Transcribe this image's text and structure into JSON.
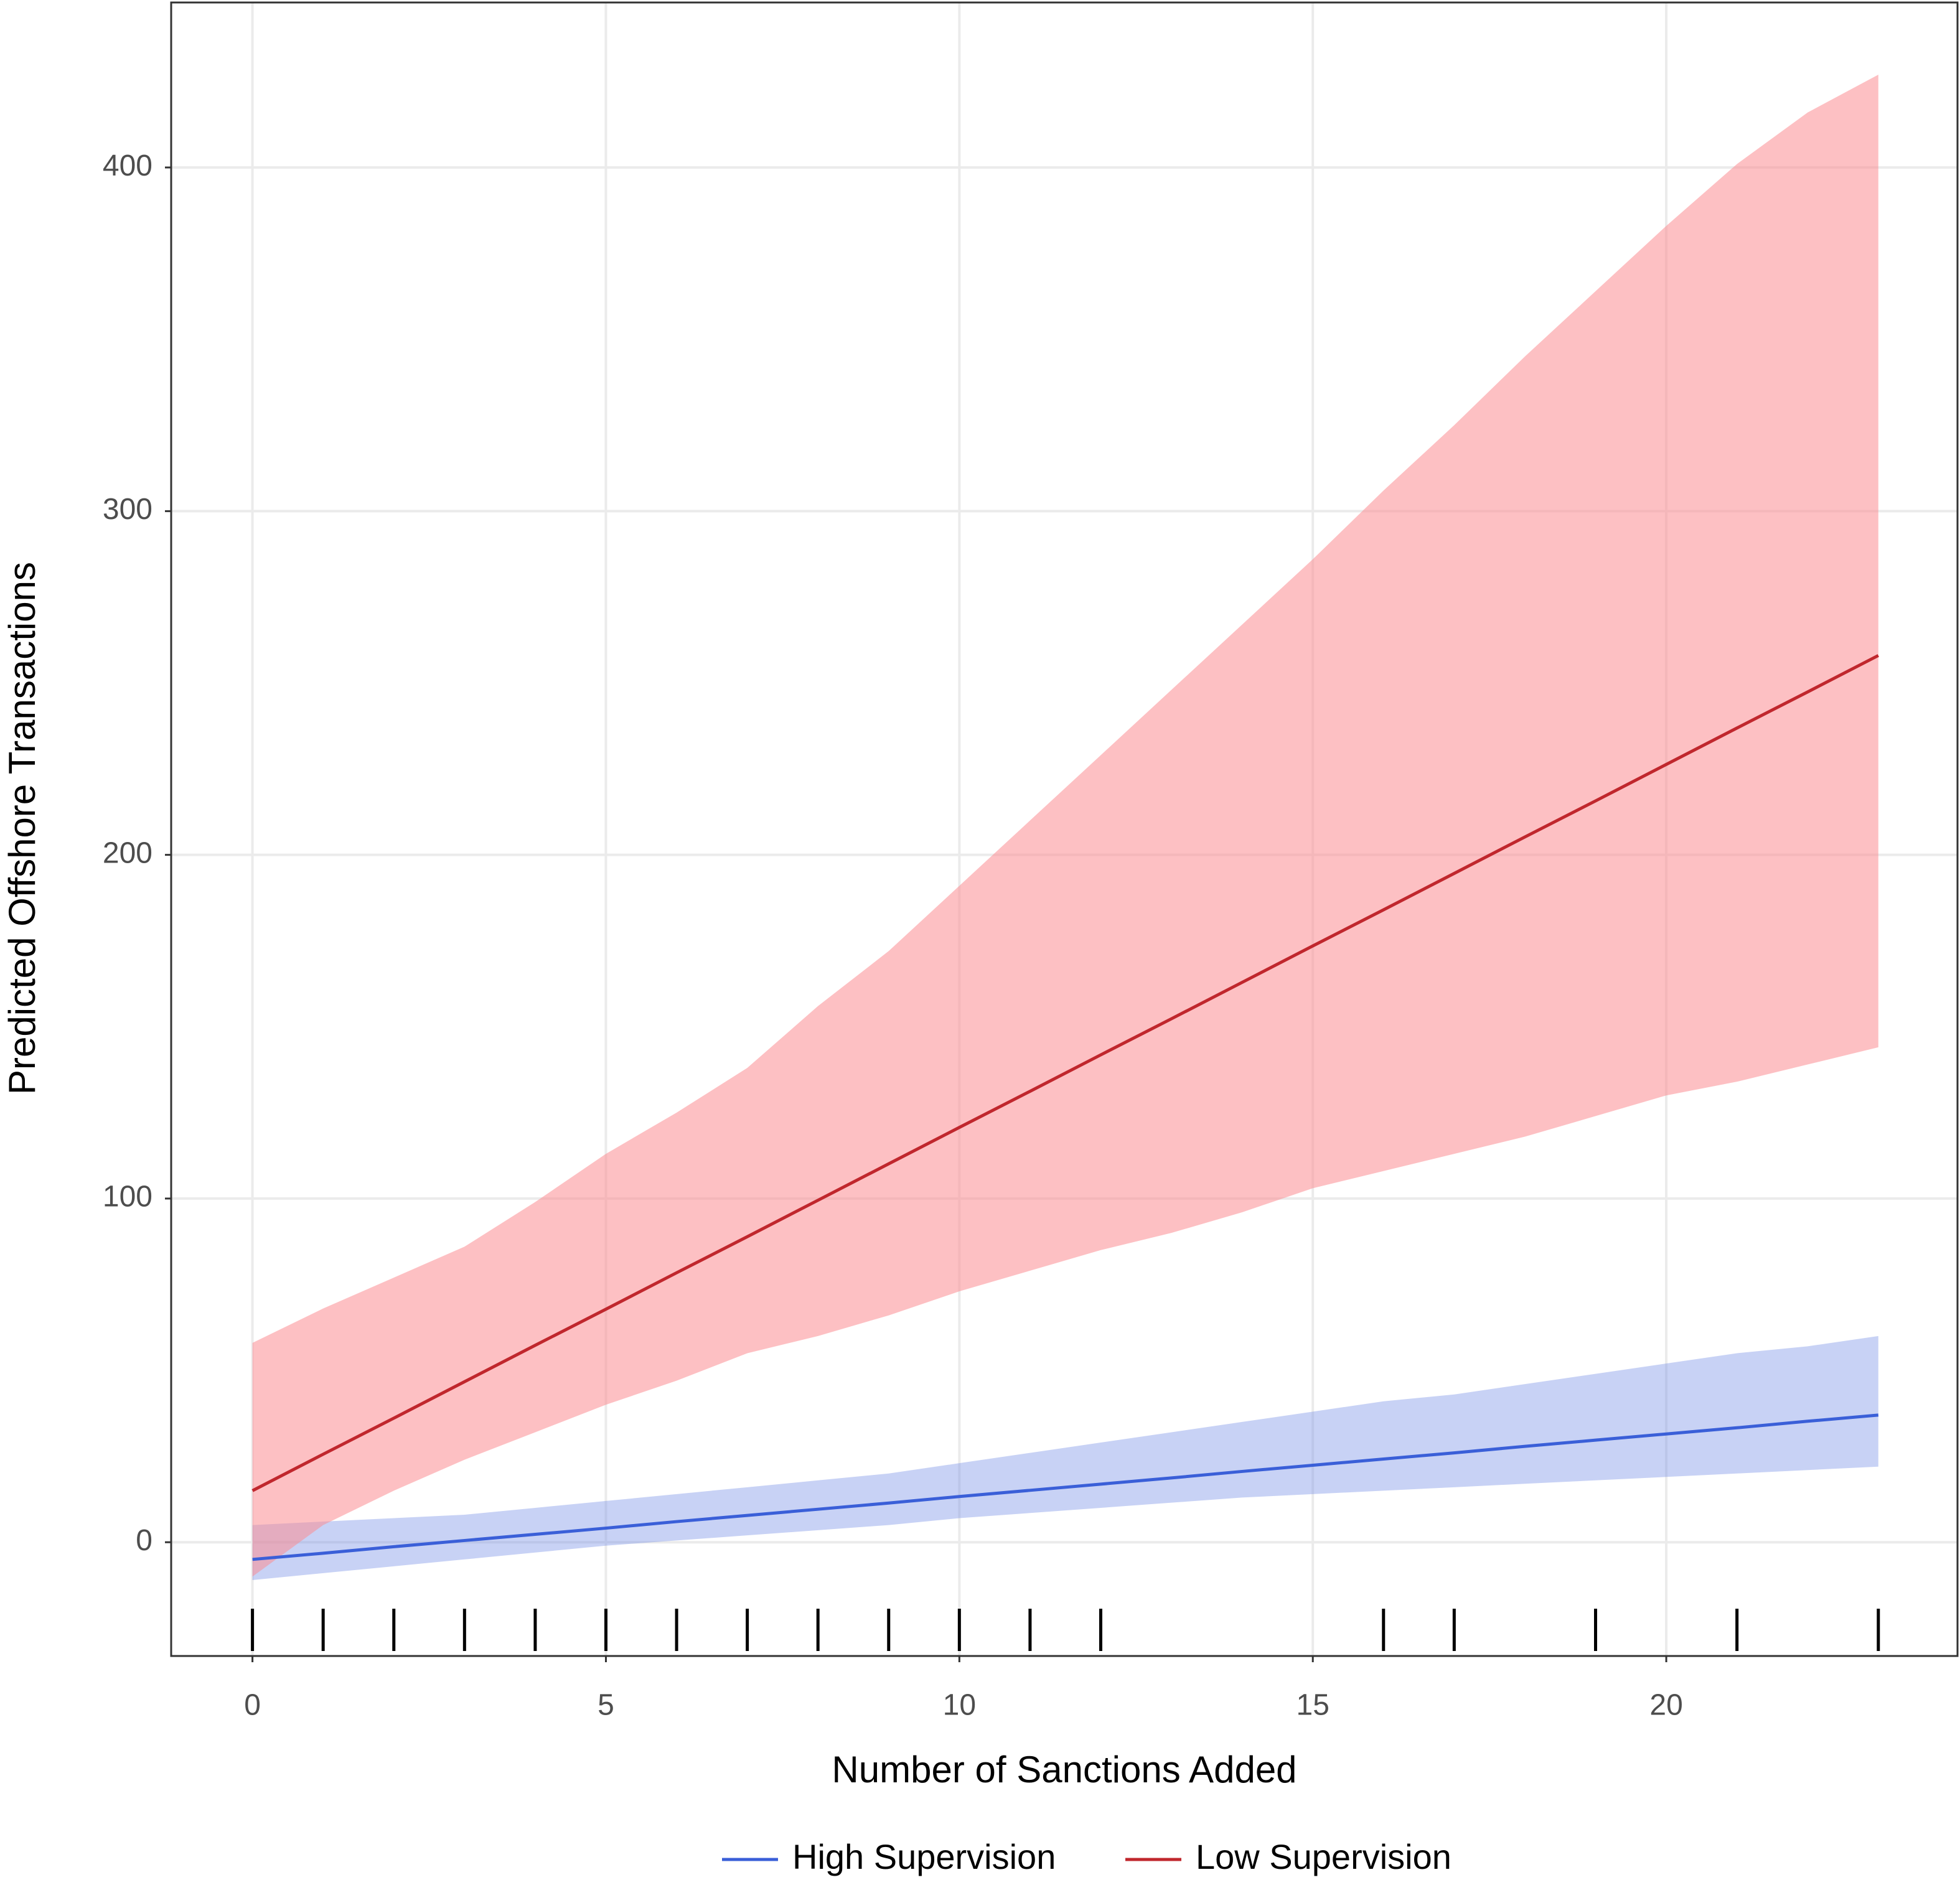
{
  "chart_data": {
    "type": "line_ribbon",
    "x_label": "Number of Sanctions Added",
    "y_label": "Predicted Offshore Transactions",
    "xlim": [
      -1.15,
      24.12
    ],
    "ylim": [
      -33.1,
      448
    ],
    "xticks": [
      0,
      5,
      10,
      15,
      20
    ],
    "yticks": [
      0,
      100,
      200,
      300,
      400
    ],
    "grid": true,
    "legend": "bottom",
    "series": [
      {
        "name": "High Supervision",
        "color": "#3a5fd8",
        "ribbon_color": "#7b93e6",
        "x": [
          0,
          1,
          2,
          3,
          4,
          5,
          6,
          7,
          8,
          9,
          10,
          11,
          12,
          13,
          14,
          15,
          16,
          17,
          18,
          19,
          20,
          21,
          22,
          23
        ],
        "values": [
          -5,
          -3.2,
          -1.3,
          0.5,
          2.3,
          4.1,
          6,
          7.8,
          9.6,
          11.4,
          13.3,
          15.1,
          16.9,
          18.7,
          20.6,
          22.4,
          24.2,
          26,
          27.9,
          29.7,
          31.5,
          33.3,
          35.2,
          37
        ],
        "lower": [
          -11,
          -9,
          -7,
          -5,
          -3,
          -1,
          0.5,
          2,
          3.5,
          5,
          7,
          8.5,
          10,
          11.5,
          13,
          14,
          15,
          16,
          17,
          18,
          19,
          20,
          21,
          22
        ],
        "upper": [
          5,
          6,
          7,
          8,
          10,
          12,
          14,
          16,
          18,
          20,
          23,
          26,
          29,
          32,
          35,
          38,
          41,
          43,
          46,
          49,
          52,
          55,
          57,
          60
        ]
      },
      {
        "name": "Low Supervision",
        "color": "#c0272d",
        "ribbon_color": "#fc8d92",
        "x": [
          0,
          1,
          2,
          3,
          4,
          5,
          6,
          7,
          8,
          9,
          10,
          11,
          12,
          13,
          14,
          15,
          16,
          17,
          18,
          19,
          20,
          21,
          22,
          23
        ],
        "values": [
          15,
          25.6,
          36.1,
          46.7,
          57.3,
          67.8,
          78.4,
          88.9,
          99.5,
          110.1,
          120.7,
          131.2,
          141.8,
          152.3,
          162.9,
          173.5,
          184,
          194.6,
          205.2,
          215.7,
          226.3,
          236.9,
          247.4,
          258
        ],
        "lower": [
          -10,
          5,
          15,
          24,
          32,
          40,
          47,
          55,
          60,
          66,
          73,
          79,
          85,
          90,
          96,
          103,
          108,
          113,
          118,
          124,
          130,
          134,
          139,
          144
        ],
        "upper": [
          58,
          68,
          77,
          86,
          99,
          113,
          125,
          138,
          156,
          172,
          191,
          210,
          229,
          248,
          267,
          286,
          306,
          325,
          345,
          364,
          383,
          401,
          416,
          427
        ]
      }
    ],
    "rug": [
      0,
      1,
      2,
      3,
      4,
      5,
      6,
      7,
      8,
      9,
      10,
      11,
      12,
      16,
      17,
      19,
      21,
      23
    ]
  }
}
